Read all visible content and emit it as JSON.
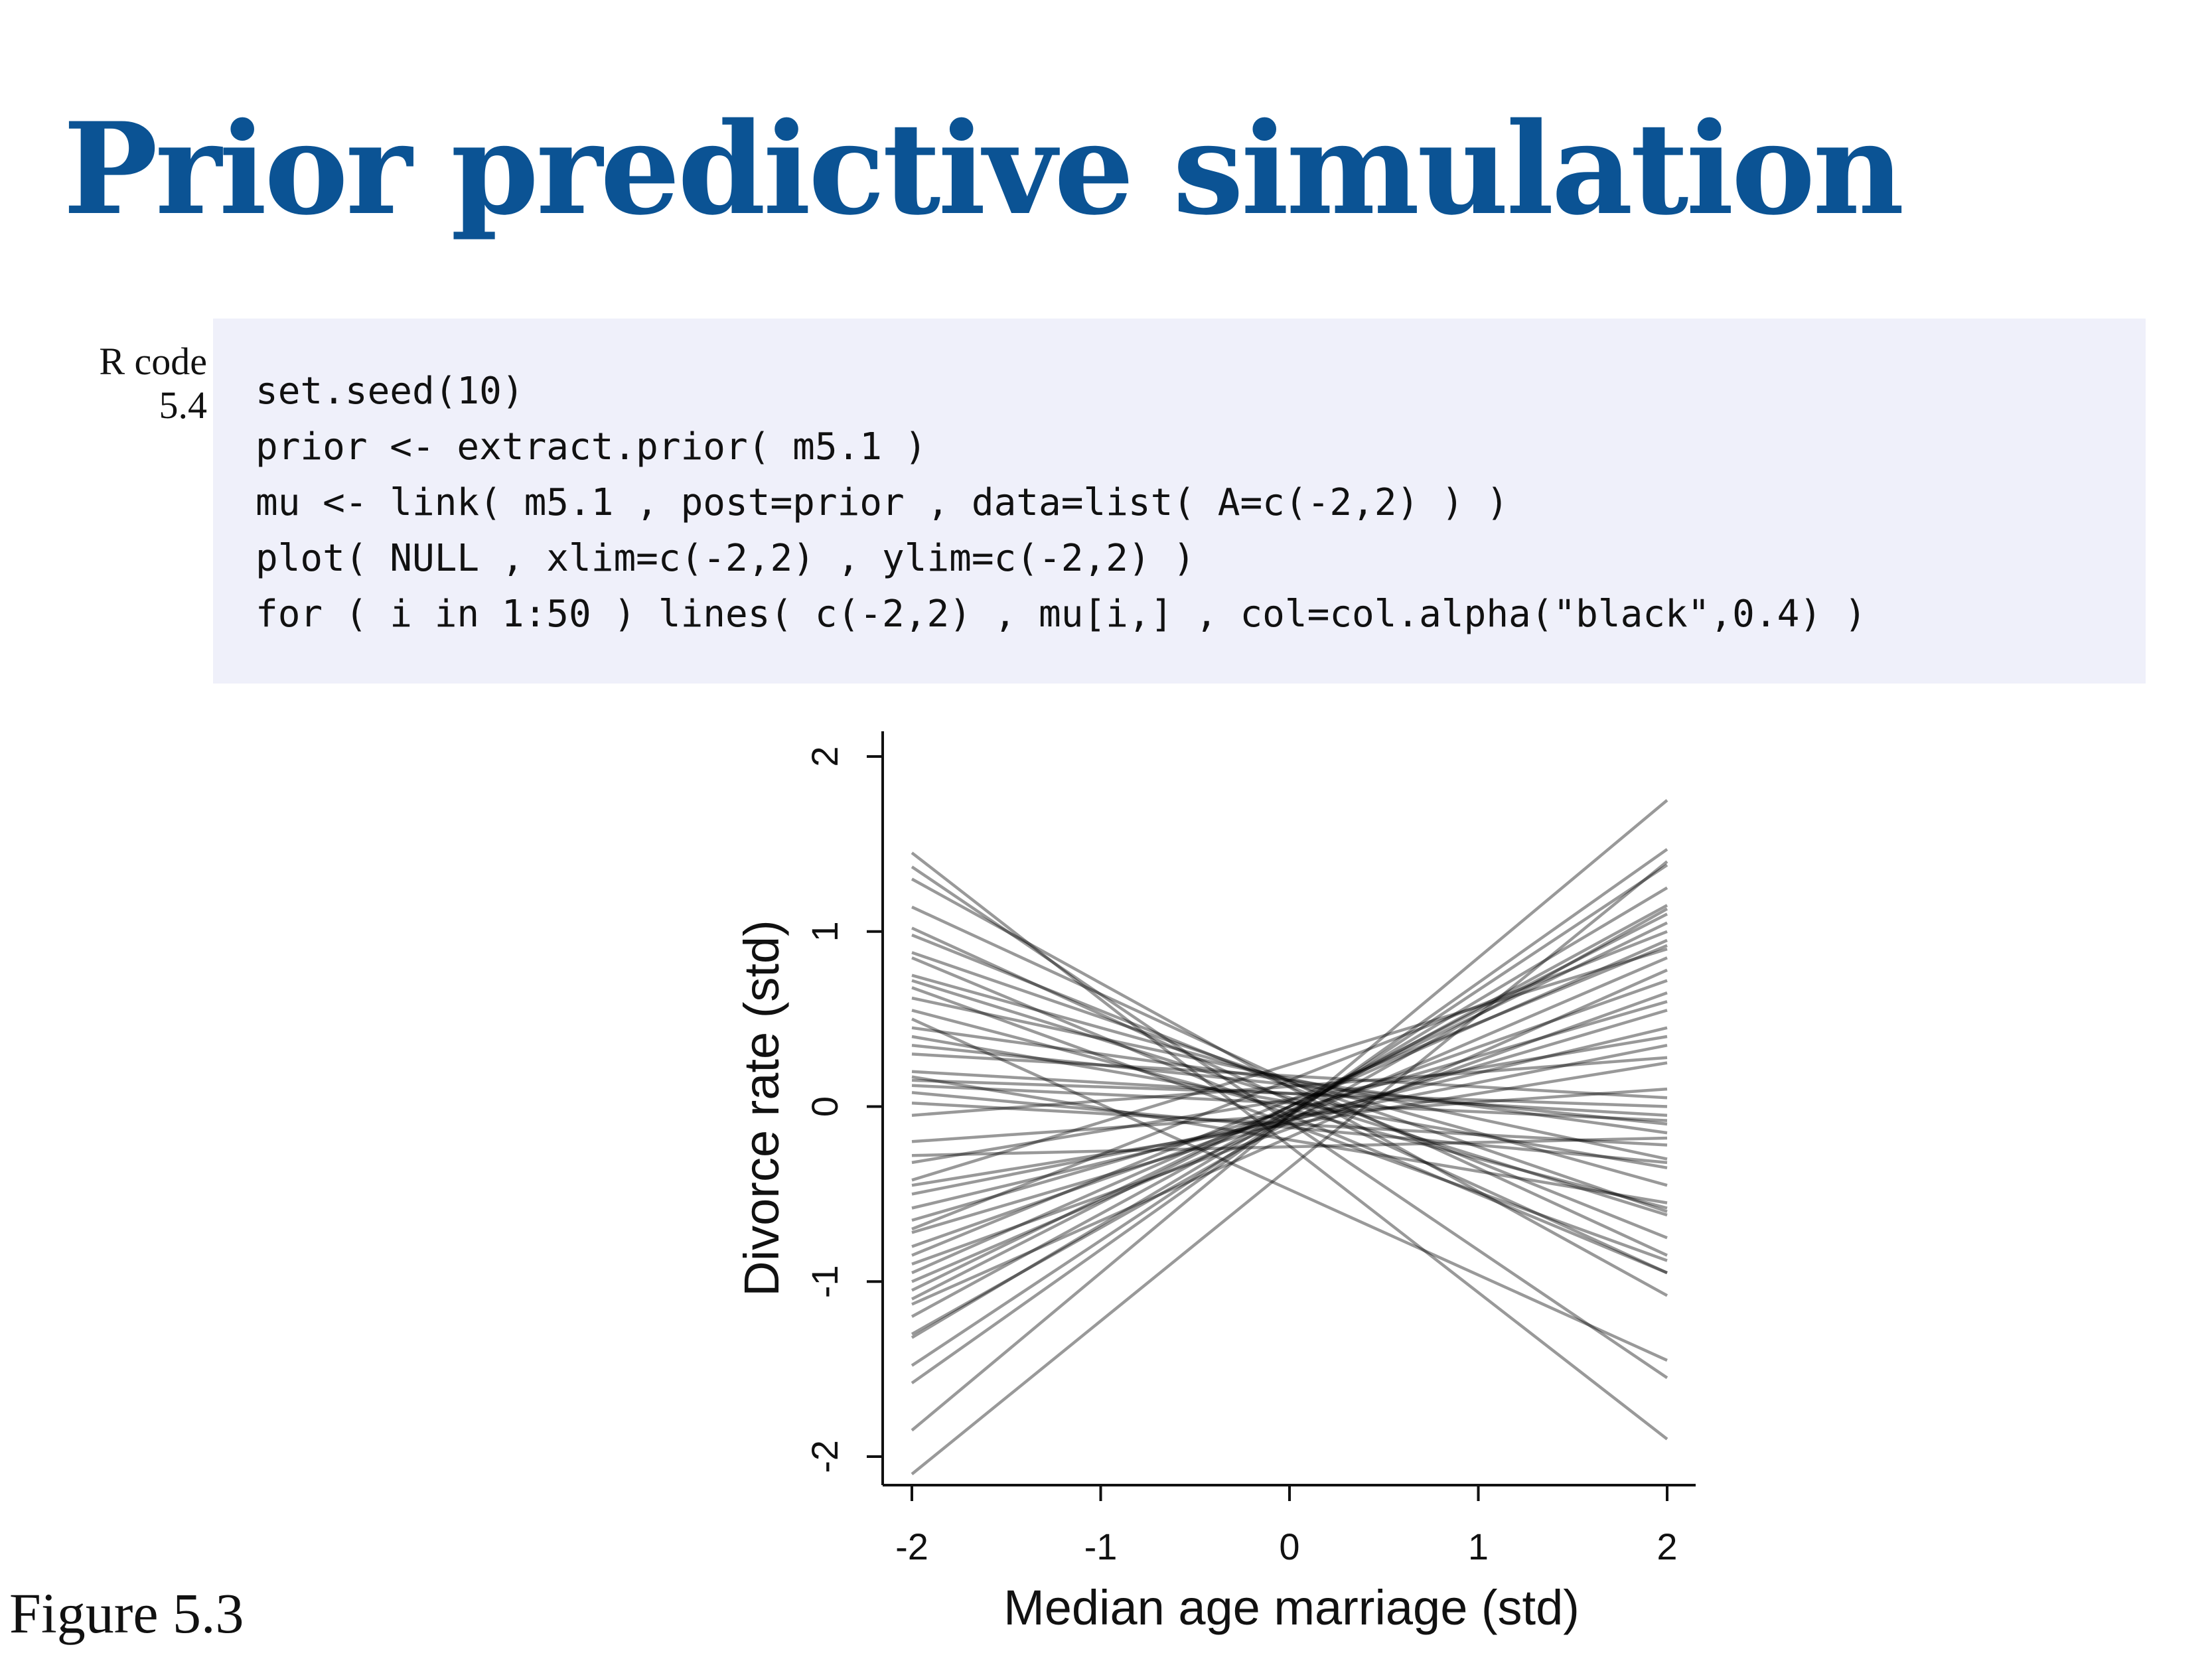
{
  "slide": {
    "title": "Prior predictive simulation",
    "figure_label": "Figure 5.3"
  },
  "code": {
    "caption_line1": "R code",
    "caption_line2": "5.4",
    "lines": [
      "set.seed(10)",
      "prior <- extract.prior( m5.1 )",
      "mu <- link( m5.1 , post=prior , data=list( A=c(-2,2) ) )",
      "plot( NULL , xlim=c(-2,2) , ylim=c(-2,2) )",
      "for ( i in 1:50 ) lines( c(-2,2) , mu[i,] , col=col.alpha(\"black\",0.4) )"
    ]
  },
  "chart_data": {
    "type": "line",
    "xlabel": "Median age marriage (std)",
    "ylabel": "Divorce rate (std)",
    "xlim": [
      -2,
      2
    ],
    "ylim": [
      -2,
      2
    ],
    "x_ticks": [
      "-2",
      "-1",
      "0",
      "1",
      "2"
    ],
    "y_ticks": [
      "-2",
      "-1",
      "0",
      "1",
      "2"
    ],
    "line_color": "#000000",
    "line_opacity": 0.4,
    "x": [
      -2,
      2
    ],
    "series": [
      {
        "values": [
          1.45,
          -1.9
        ]
      },
      {
        "values": [
          1.37,
          -1.55
        ]
      },
      {
        "values": [
          1.14,
          -0.85
        ]
      },
      {
        "values": [
          0.98,
          -0.75
        ]
      },
      {
        "values": [
          0.88,
          -0.6
        ]
      },
      {
        "values": [
          0.85,
          -0.95
        ]
      },
      {
        "values": [
          0.75,
          -0.45
        ]
      },
      {
        "values": [
          0.68,
          -0.88
        ]
      },
      {
        "values": [
          0.62,
          -0.3
        ]
      },
      {
        "values": [
          0.55,
          -0.58
        ]
      },
      {
        "values": [
          0.5,
          -1.45
        ]
      },
      {
        "values": [
          0.45,
          -0.15
        ]
      },
      {
        "values": [
          0.4,
          -0.35
        ]
      },
      {
        "values": [
          0.35,
          -0.1
        ]
      },
      {
        "values": [
          0.3,
          0.05
        ]
      },
      {
        "values": [
          0.2,
          -0.05
        ]
      },
      {
        "values": [
          0.17,
          -0.55
        ]
      },
      {
        "values": [
          0.15,
          0.0
        ]
      },
      {
        "values": [
          0.12,
          -0.08
        ]
      },
      {
        "values": [
          0.08,
          -0.32
        ]
      },
      {
        "values": [
          -0.2,
          0.1
        ]
      },
      {
        "values": [
          -0.28,
          -0.18
        ]
      },
      {
        "values": [
          -0.32,
          0.4
        ]
      },
      {
        "values": [
          -0.45,
          0.25
        ]
      },
      {
        "values": [
          -0.5,
          0.35
        ]
      },
      {
        "values": [
          -0.58,
          0.45
        ]
      },
      {
        "values": [
          -0.65,
          0.6
        ]
      },
      {
        "values": [
          -0.72,
          0.55
        ]
      },
      {
        "values": [
          -0.8,
          0.72
        ]
      },
      {
        "values": [
          -0.85,
          0.92
        ]
      },
      {
        "values": [
          -0.9,
          0.65
        ]
      },
      {
        "values": [
          -0.95,
          0.95
        ]
      },
      {
        "values": [
          -1.0,
          0.85
        ]
      },
      {
        "values": [
          -1.05,
          1.05
        ]
      },
      {
        "values": [
          -1.1,
          1.1
        ]
      },
      {
        "values": [
          -1.13,
          0.78
        ]
      },
      {
        "values": [
          -1.2,
          1.15
        ]
      },
      {
        "values": [
          -1.3,
          1.13
        ]
      },
      {
        "values": [
          -1.32,
          1.25
        ]
      },
      {
        "values": [
          -1.48,
          1.38
        ]
      },
      {
        "values": [
          -1.58,
          1.47
        ]
      },
      {
        "values": [
          -1.85,
          1.75
        ]
      },
      {
        "values": [
          -2.1,
          1.4
        ]
      },
      {
        "values": [
          1.3,
          -1.08
        ]
      },
      {
        "values": [
          1.02,
          -0.95
        ]
      },
      {
        "values": [
          -0.05,
          0.28
        ]
      },
      {
        "values": [
          0.02,
          -0.22
        ]
      },
      {
        "values": [
          -0.42,
          0.9
        ]
      },
      {
        "values": [
          0.72,
          -0.62
        ]
      },
      {
        "values": [
          -0.7,
          1.0
        ]
      }
    ]
  }
}
